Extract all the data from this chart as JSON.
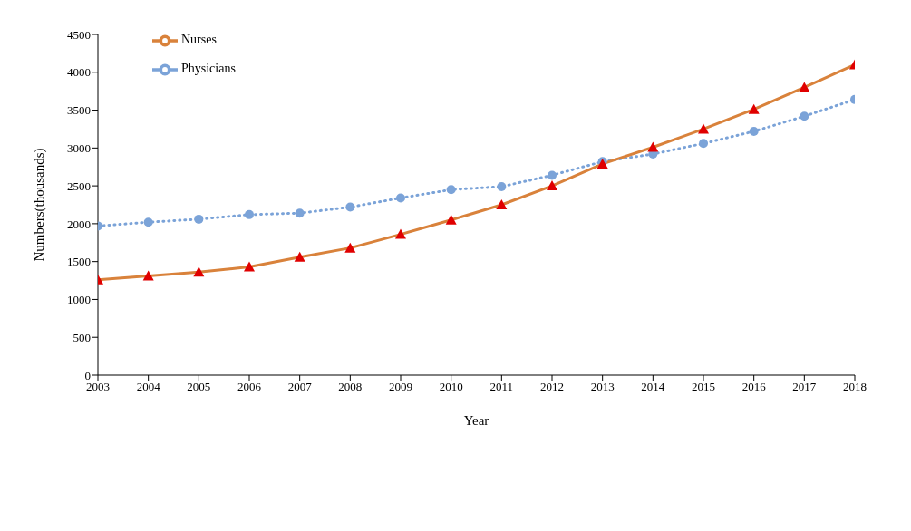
{
  "chart_data": {
    "type": "line",
    "xlabel": "Year",
    "ylabel": "Numbers(thousands)",
    "x": [
      2003,
      2004,
      2005,
      2006,
      2007,
      2008,
      2009,
      2010,
      2011,
      2012,
      2013,
      2014,
      2015,
      2016,
      2017,
      2018
    ],
    "xlim": [
      2003,
      2018
    ],
    "xticks": [
      2003,
      2004,
      2005,
      2006,
      2007,
      2008,
      2009,
      2010,
      2011,
      2012,
      2013,
      2014,
      2015,
      2016,
      2017,
      2018
    ],
    "ylim": [
      0,
      4500
    ],
    "yticks": [
      0,
      500,
      1000,
      1500,
      2000,
      2500,
      3000,
      3500,
      4000,
      4500
    ],
    "grid": false,
    "legend": "top left",
    "series": [
      {
        "name": "Physicians",
        "color": "#7ba3d8",
        "marker": "circle",
        "line_style": "dotted",
        "values": [
          1970,
          2020,
          2060,
          2120,
          2140,
          2220,
          2340,
          2450,
          2490,
          2640,
          2820,
          2920,
          3060,
          3220,
          3420,
          3640
        ]
      },
      {
        "name": "Nurses",
        "color": "#d9823b",
        "colors": [
          "#e00000",
          "#e00000",
          "#e00000",
          "#e00000",
          "#e00000",
          "#e00000",
          "#e00000",
          "#e00000",
          "#e00000",
          "#e00000",
          "#e00000",
          "#e00000",
          "#e00000",
          "#e00000",
          "#e00000",
          "#e00000"
        ],
        "marker": "triangle",
        "line_style": "solid",
        "values": [
          1260,
          1310,
          1360,
          1430,
          1560,
          1680,
          1860,
          2050,
          2250,
          2500,
          2790,
          3010,
          3250,
          3510,
          3800,
          4100
        ]
      }
    ]
  }
}
